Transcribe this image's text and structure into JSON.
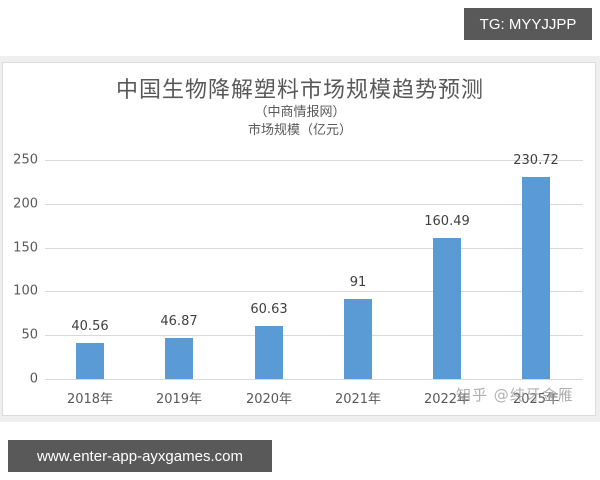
{
  "overlay": {
    "tg_badge": "TG: MYYJJPP",
    "site_badge": "www.enter-app-ayxgames.com",
    "watermark": "知乎 @纯牙金雁"
  },
  "colors": {
    "bar": "#5b9bd5",
    "badge_bg": "#595959",
    "gridline": "#d9d9d9"
  },
  "chart_data": {
    "type": "bar",
    "title": "中国生物降解塑料市场规模趋势预测",
    "subtitle": "（中商情报网）",
    "ylabel": "市场规模（亿元）",
    "xlabel": "",
    "categories": [
      "2018年",
      "2019年",
      "2020年",
      "2021年",
      "2022年",
      "2025年"
    ],
    "values": [
      40.56,
      46.87,
      60.63,
      91,
      160.49,
      230.72
    ],
    "value_labels": [
      "40.56",
      "46.87",
      "60.63",
      "91",
      "160.49",
      "230.72"
    ],
    "ylim": [
      0,
      250
    ],
    "yticks": [
      "0",
      "50",
      "100",
      "150",
      "200",
      "250"
    ],
    "grid": true,
    "legend": null
  }
}
